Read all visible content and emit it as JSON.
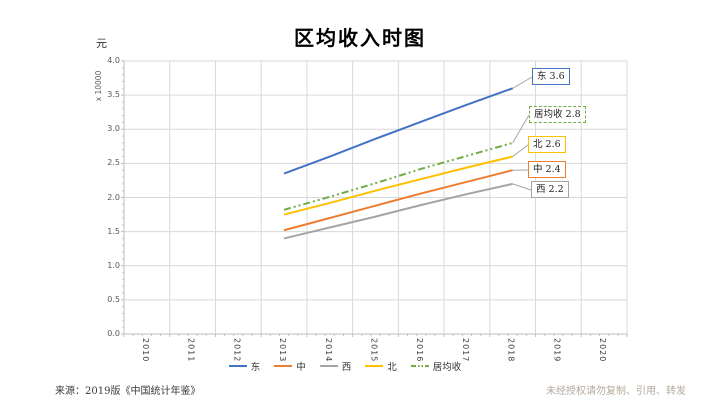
{
  "chart_data": {
    "type": "line",
    "title": "区均收入时图",
    "y_axis": {
      "unit_label": "元",
      "multiplier_label": "x 10000",
      "tick_labels": [
        "0.0",
        "0.5",
        "1.0",
        "1.5",
        "2.0",
        "2.5",
        "3.0",
        "3.5",
        "4.0"
      ],
      "ylim": [
        0,
        4
      ]
    },
    "x_axis": {
      "categories": [
        "2010",
        "2011",
        "2012",
        "2013",
        "2014",
        "2015",
        "2016",
        "2017",
        "2018",
        "2019",
        "2020"
      ]
    },
    "grid": true,
    "legend_position": "bottom",
    "data_x": [
      "2013",
      "2014",
      "2015",
      "2016",
      "2017",
      "2018"
    ],
    "series": [
      {
        "id": "east",
        "name": "东",
        "color": "#4472C4",
        "line_style": "solid",
        "values": [
          2.35,
          2.6,
          2.86,
          3.11,
          3.36,
          3.6
        ],
        "end_label": "东 3.6"
      },
      {
        "id": "central",
        "name": "中",
        "color": "#ED7D31",
        "line_style": "solid",
        "values": [
          1.52,
          1.7,
          1.88,
          2.06,
          2.23,
          2.4
        ],
        "end_label": "中 2.4"
      },
      {
        "id": "west",
        "name": "西",
        "color": "#A5A5A5",
        "line_style": "solid",
        "values": [
          1.4,
          1.56,
          1.72,
          1.89,
          2.05,
          2.2
        ],
        "end_label": "西 2.2"
      },
      {
        "id": "north",
        "name": "北",
        "color": "#FFC000",
        "line_style": "solid",
        "values": [
          1.75,
          1.92,
          2.1,
          2.27,
          2.44,
          2.6
        ],
        "end_label": "北 2.6"
      },
      {
        "id": "resident-avg",
        "name": "居均收",
        "color": "#70AD47",
        "line_style": "dash-dot",
        "values": [
          1.82,
          2.01,
          2.21,
          2.42,
          2.61,
          2.8
        ],
        "end_label": "居均收 2.8"
      }
    ]
  },
  "footer": {
    "source": "来源：2019版《中国统计年鉴》",
    "notice": "未经授权请勿复制、引用、转发"
  },
  "colors": {
    "grid": "#D9D9D9",
    "axis": "#BFBFBF",
    "tick_text": "#595959",
    "leader": "#A6A6A6"
  }
}
